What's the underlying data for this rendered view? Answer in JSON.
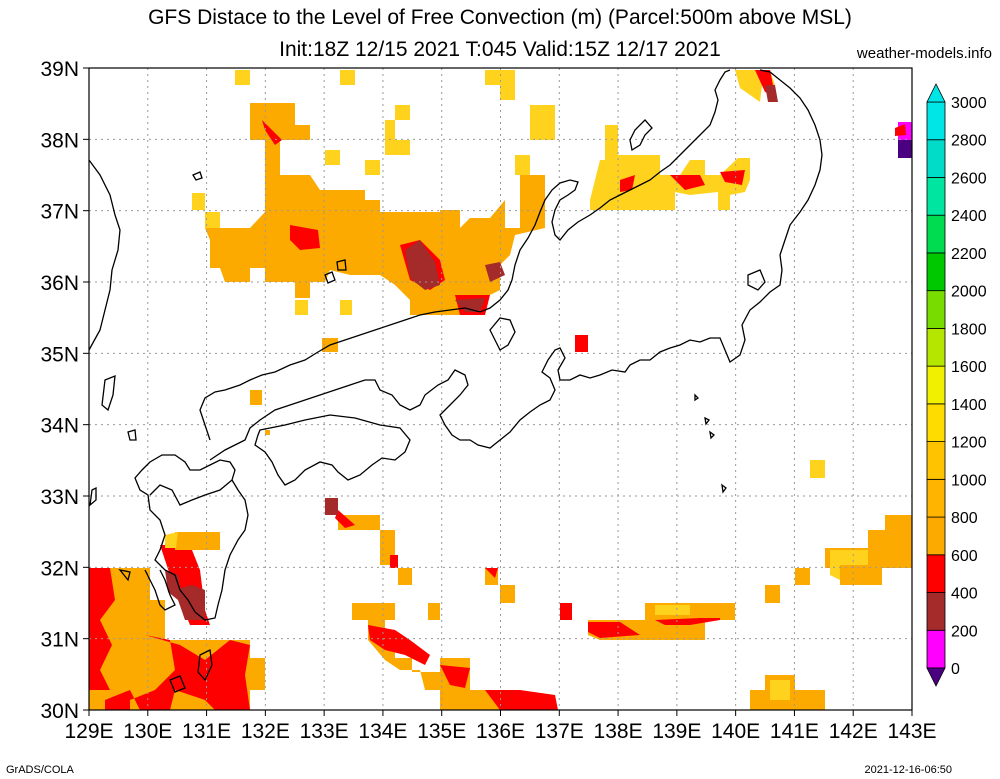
{
  "title": {
    "line1": "GFS Distace to the Level of Free Convection (m) (Parcel:500m above MSL)",
    "line2": "Init:18Z 12/15 2021 T:045 Valid:15Z 12/17 2021"
  },
  "credit": "weather-models.info",
  "footer": {
    "left": "GrADS/COLA",
    "right": "2021-12-16-06:50"
  },
  "map": {
    "lon_range": [
      129,
      143
    ],
    "lat_range": [
      30,
      39
    ],
    "lon_labels": [
      "129E",
      "130E",
      "131E",
      "132E",
      "133E",
      "134E",
      "135E",
      "136E",
      "137E",
      "138E",
      "139E",
      "140E",
      "141E",
      "142E",
      "143E"
    ],
    "lat_labels": [
      "30N",
      "31N",
      "32N",
      "33N",
      "34N",
      "35N",
      "36N",
      "37N",
      "38N",
      "39N"
    ],
    "grid": true,
    "fill_colors": {
      "yellow": "#ffd21e",
      "orange": "#fcaa00",
      "red": "#ff0000",
      "brown": "#a52a2a",
      "magenta": "#ff00ff",
      "indigo": "#4b0082"
    }
  },
  "colorbar": {
    "levels": [
      "0",
      "200",
      "400",
      "600",
      "800",
      "1000",
      "1200",
      "1400",
      "1600",
      "1800",
      "2000",
      "2200",
      "2400",
      "2600",
      "2800",
      "3000"
    ],
    "colors": [
      "#4b0082",
      "#ff00ff",
      "#a52a2a",
      "#ff0000",
      "#fcaa00",
      "#ffb400",
      "#ffc300",
      "#ffdc00",
      "#f0f000",
      "#b4e600",
      "#78dc00",
      "#00c800",
      "#00dc50",
      "#00e6a0",
      "#00dcc8",
      "#00e6e6"
    ]
  }
}
